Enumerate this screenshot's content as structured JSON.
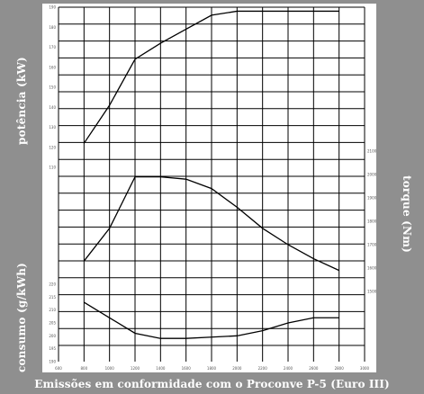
{
  "labels": {
    "power_axis": "potência (kW)",
    "consumption_axis": "consumo (g/kWh)",
    "torque_axis": "torque (Nm)",
    "caption": "Emissões em conformidade com o Proconve P-5 (Euro III)"
  },
  "colors": {
    "background": "#8f8f8f",
    "panel": "#ffffff",
    "grid": "#000000",
    "curve": "#000000",
    "text": "#ffffff",
    "tick_text": "#555555"
  },
  "chart_data": [
    {
      "type": "line",
      "title": "",
      "xlabel": "",
      "ylabel": "potência (kW)",
      "x": [
        800,
        1000,
        1200,
        1400,
        1600,
        1800,
        2000,
        2200,
        2400,
        2600,
        2800
      ],
      "series": [
        {
          "values": [
            122,
            141,
            164,
            172,
            179,
            186,
            188,
            188,
            188,
            188,
            188
          ]
        }
      ],
      "ylim": [
        110,
        190
      ],
      "y_ticks": [
        110,
        120,
        130,
        140,
        150,
        160,
        170,
        180,
        190
      ],
      "grid": true
    },
    {
      "type": "line",
      "title": "",
      "xlabel": "",
      "ylabel": "torque (Nm)",
      "x": [
        800,
        1000,
        1200,
        1400,
        1600,
        1800,
        2000,
        2200,
        2400,
        2600,
        2800
      ],
      "series": [
        {
          "values": [
            1630,
            1770,
            1990,
            1990,
            1980,
            1940,
            1860,
            1770,
            1700,
            1640,
            1590
          ]
        }
      ],
      "ylim": [
        1500,
        2100
      ],
      "y_ticks": [
        1500,
        1600,
        1700,
        1800,
        1900,
        2000,
        2100
      ],
      "grid": true
    },
    {
      "type": "line",
      "title": "",
      "xlabel": "",
      "ylabel": "consumo (g/kWh)",
      "x": [
        800,
        1000,
        1200,
        1400,
        1600,
        1800,
        2000,
        2200,
        2400,
        2600,
        2800
      ],
      "series": [
        {
          "values": [
            213,
            207,
            201,
            199,
            199,
            199.5,
            200,
            202,
            205,
            207,
            207
          ]
        }
      ],
      "ylim": [
        190,
        220
      ],
      "y_ticks": [
        190,
        195,
        200,
        205,
        210,
        215,
        220
      ],
      "grid": true
    }
  ],
  "x_ticks": [
    600,
    800,
    1000,
    1200,
    1400,
    1600,
    1800,
    2000,
    2200,
    2400,
    2600,
    2800,
    3000
  ]
}
